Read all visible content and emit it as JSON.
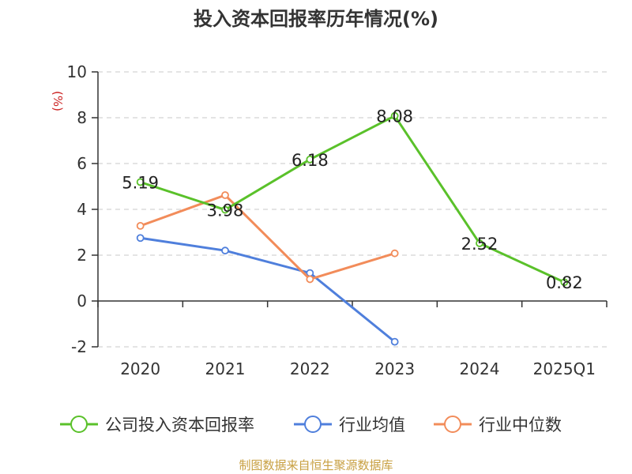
{
  "title": "投入资本回报率历年情况(%)",
  "source": "制图数据来自恒生聚源数据库",
  "chart_data": {
    "type": "line",
    "title": "投入资本回报率历年情况(%)",
    "ylabel": "(%)",
    "categories": [
      "2020",
      "2021",
      "2022",
      "2023",
      "2024",
      "2025Q1"
    ],
    "ylim": [
      -2,
      10
    ],
    "yticks": [
      -2,
      0,
      2,
      4,
      6,
      8,
      10
    ],
    "grid": true,
    "legend": "bottom",
    "series": [
      {
        "name": "公司投入资本回报率",
        "color": "#5ac12a",
        "values": [
          5.19,
          3.98,
          6.18,
          8.08,
          2.52,
          0.82
        ],
        "labels": [
          "5.19",
          "3.98",
          "6.18",
          "8.08",
          "2.52",
          "0.82"
        ]
      },
      {
        "name": "行业均值",
        "color": "#4f7fdc",
        "values": [
          2.75,
          2.2,
          1.22,
          -1.78,
          null,
          null
        ]
      },
      {
        "name": "行业中位数",
        "color": "#f28c5a",
        "values": [
          3.28,
          4.62,
          0.95,
          2.08,
          null,
          null
        ]
      }
    ]
  }
}
